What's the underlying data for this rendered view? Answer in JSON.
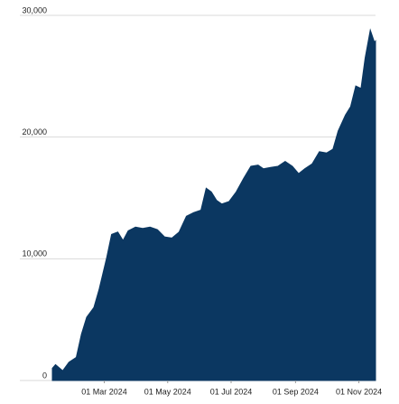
{
  "chart_data": {
    "type": "area",
    "color": "#0b3761",
    "grid": true,
    "x": [
      "2024-01-11",
      "2024-01-14",
      "2024-01-21",
      "2024-01-27",
      "2024-02-03",
      "2024-02-08",
      "2024-02-13",
      "2024-02-20",
      "2024-02-25",
      "2024-03-03",
      "2024-03-08",
      "2024-03-14",
      "2024-03-19",
      "2024-03-24",
      "2024-03-31",
      "2024-04-07",
      "2024-04-14",
      "2024-04-21",
      "2024-04-28",
      "2024-05-05",
      "2024-05-12",
      "2024-05-19",
      "2024-05-26",
      "2024-06-02",
      "2024-06-07",
      "2024-06-12",
      "2024-06-17",
      "2024-06-22",
      "2024-06-29",
      "2024-07-06",
      "2024-07-13",
      "2024-07-20",
      "2024-07-27",
      "2024-08-01",
      "2024-08-08",
      "2024-08-15",
      "2024-08-22",
      "2024-08-29",
      "2024-09-04",
      "2024-09-10",
      "2024-09-17",
      "2024-09-24",
      "2024-10-01",
      "2024-10-07",
      "2024-10-12",
      "2024-10-19",
      "2024-10-24",
      "2024-10-29",
      "2024-11-03",
      "2024-11-07",
      "2024-11-12",
      "2024-11-16",
      "2024-11-17"
    ],
    "values": [
      1000,
      1300,
      800,
      1500,
      1900,
      3800,
      5200,
      6000,
      7500,
      10000,
      12000,
      12200,
      11500,
      12300,
      12600,
      12500,
      12600,
      12400,
      11800,
      11700,
      12200,
      13500,
      13800,
      14000,
      15800,
      15500,
      14800,
      14500,
      14700,
      15500,
      16600,
      17600,
      17700,
      17400,
      17500,
      17600,
      18000,
      17600,
      17000,
      17400,
      17800,
      18800,
      18700,
      19000,
      20500,
      21800,
      22500,
      24200,
      24000,
      26500,
      28800,
      27800,
      27900
    ],
    "xlim": [
      "2024-01-11",
      "2024-11-17"
    ],
    "xticks": [
      {
        "value": "2024-03-01",
        "label": "01 Mar 2024"
      },
      {
        "value": "2024-05-01",
        "label": "01 May 2024"
      },
      {
        "value": "2024-07-01",
        "label": "01 Jul 2024"
      },
      {
        "value": "2024-09-01",
        "label": "01 Sep 2024"
      },
      {
        "value": "2024-11-01",
        "label": "01 Nov 2024"
      }
    ],
    "ylim": [
      0,
      30000
    ],
    "yticks": [
      0,
      {
        "value": 10000,
        "label": "10,000"
      },
      {
        "value": 20000,
        "label": "20,000"
      },
      {
        "value": 30000,
        "label": "30,000"
      }
    ]
  }
}
